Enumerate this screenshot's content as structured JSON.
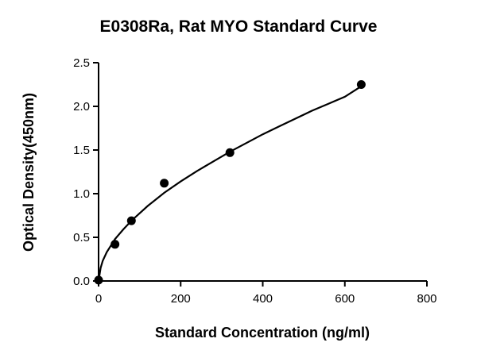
{
  "chart_data": {
    "type": "scatter",
    "title": "E0308Ra, Rat MYO Standard Curve",
    "xlabel": "Standard Concentration (ng/ml)",
    "ylabel": "Optical Density(450nm)",
    "xlim": [
      0,
      800
    ],
    "ylim": [
      0,
      2.5
    ],
    "x_ticks": [
      0,
      200,
      400,
      600,
      800
    ],
    "y_ticks": [
      0.0,
      0.5,
      1.0,
      1.5,
      2.0,
      2.5
    ],
    "x_tick_labels": [
      "0",
      "200",
      "400",
      "600",
      "800"
    ],
    "y_tick_labels": [
      "0.0",
      "0.5",
      "1.0",
      "1.5",
      "2.0",
      "2.5"
    ],
    "grid": false,
    "series": [
      {
        "x": [
          0,
          40,
          80,
          160,
          320,
          640
        ],
        "y": [
          0.01,
          0.42,
          0.69,
          1.12,
          1.47,
          2.25
        ]
      }
    ],
    "fit_curve": {
      "x": [
        0,
        5,
        10,
        20,
        40,
        60,
        80,
        120,
        160,
        200,
        240,
        280,
        320,
        360,
        400,
        440,
        480,
        520,
        560,
        600,
        640
      ],
      "y": [
        0.0,
        0.15,
        0.23,
        0.33,
        0.48,
        0.59,
        0.69,
        0.86,
        1.01,
        1.14,
        1.26,
        1.37,
        1.48,
        1.58,
        1.68,
        1.77,
        1.86,
        1.95,
        2.03,
        2.11,
        2.23
      ]
    },
    "marker_color": "#000000",
    "line_color": "#000000"
  }
}
